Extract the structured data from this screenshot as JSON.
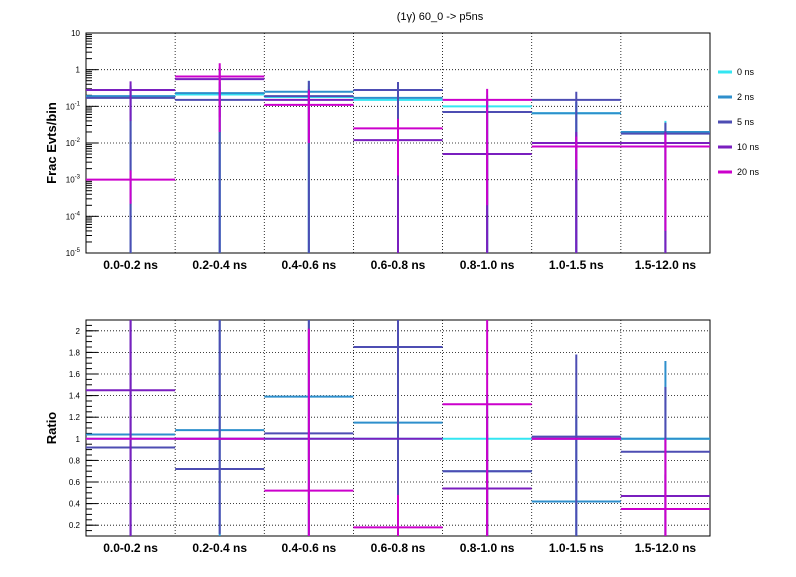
{
  "figure": {
    "title": "(1γ) 60_0 -> p5ns"
  },
  "colors": {
    "0 ns": "#33e6f2",
    "2 ns": "#2e8fcc",
    "5 ns": "#4d4db3",
    "10 ns": "#7a1fbf",
    "20 ns": "#cc00cc"
  },
  "chart_data": [
    {
      "type": "line",
      "name": "top",
      "categories": [
        "0.0-0.2 ns",
        "0.2-0.4 ns",
        "0.4-0.6 ns",
        "0.6-0.8 ns",
        "0.8-1.0 ns",
        "1.0-1.5 ns",
        "1.5-12.0 ns"
      ],
      "ylabel": "Frac Evts/bin",
      "xlabel": "",
      "yscale": "log",
      "ylim": [
        1e-05,
        10
      ],
      "ytick_labels": [
        "10^{-5}",
        "10^{-4}",
        "10^{-3}",
        "10^{-2}",
        "10^{-1}",
        "1",
        "10"
      ],
      "grid": true,
      "legend": "right",
      "series": [
        {
          "name": "0 ns",
          "values": [
            0.18,
            0.21,
            0.18,
            0.15,
            0.1,
            0.065,
            0.02
          ],
          "err_lo": [
            0.18,
            0.21,
            0.18,
            0.15,
            0.1,
            0.065,
            0.02
          ],
          "err_hi": [
            0.18,
            0.21,
            0.18,
            0.15,
            0.1,
            0.065,
            0.02
          ]
        },
        {
          "name": "2 ns",
          "values": [
            0.19,
            0.23,
            0.25,
            0.17,
            0.07,
            0.065,
            0.02
          ],
          "err_lo": [
            0.19,
            0.23,
            0.25,
            0.17,
            0.07,
            0.065,
            0.02
          ],
          "err_hi": [
            0.19,
            0.23,
            0.25,
            0.17,
            0.07,
            0.065,
            0.014
          ]
        },
        {
          "name": "5 ns",
          "values": [
            0.17,
            0.15,
            0.19,
            0.28,
            0.07,
            0.15,
            0.018
          ],
          "err_lo": [
            0.17,
            0.15,
            0.19,
            0.28,
            0.07,
            0.15,
            0.018
          ],
          "err_hi": [
            0.17,
            0.15,
            0.3,
            0.18,
            0.07,
            0.1,
            0.018
          ]
        },
        {
          "name": "10 ns",
          "values": [
            0.28,
            0.55,
            0.15,
            0.012,
            0.005,
            0.01,
            0.01
          ],
          "err_lo": [
            0.24,
            0.5,
            0.14,
            0.012,
            0.005,
            0.01,
            0.01
          ],
          "err_hi": [
            0.2,
            0.6,
            0.14,
            0.012,
            0.005,
            0.01,
            0.01
          ]
        },
        {
          "name": "20 ns",
          "values": [
            0.001,
            0.65,
            0.11,
            0.025,
            0.15,
            0.008,
            0.008
          ],
          "err_lo": [
            0.00078,
            0.63,
            0.1,
            0.0237,
            0.1498,
            0.0061,
            0.00796
          ],
          "err_hi": [
            0.0008,
            0.85,
            0.16,
            0.021,
            0.15,
            0.007,
            0.01
          ]
        }
      ]
    },
    {
      "type": "line",
      "name": "ratio",
      "categories": [
        "0.0-0.2 ns",
        "0.2-0.4 ns",
        "0.4-0.6 ns",
        "0.6-0.8 ns",
        "0.8-1.0 ns",
        "1.0-1.5 ns",
        "1.5-12.0 ns"
      ],
      "ylabel": "Ratio",
      "xlabel": "",
      "ylim": [
        0.1,
        2.1
      ],
      "yticks": [
        0.2,
        0.4,
        0.6,
        0.8,
        1,
        1.2,
        1.4,
        1.6,
        1.8,
        2
      ],
      "grid": true,
      "series": [
        {
          "name": "0 ns",
          "values": [
            1.0,
            1.0,
            1.0,
            1.0,
            1.0,
            1.0,
            1.0
          ],
          "err_lo": [
            0,
            0,
            0,
            0,
            0,
            0,
            0
          ],
          "err_hi": [
            0,
            0,
            0,
            0,
            0,
            0,
            0
          ]
        },
        {
          "name": "2 ns",
          "values": [
            1.04,
            1.08,
            1.39,
            1.15,
            0.7,
            0.42,
            1.0
          ],
          "err_lo": [
            0.95,
            0.98,
            1.3,
            1.1,
            0.65,
            0.32,
            0.9
          ],
          "err_hi": [
            1.1,
            1.05,
            1.2,
            1.05,
            0.7,
            0.8,
            0.72
          ]
        },
        {
          "name": "5 ns",
          "values": [
            0.92,
            0.72,
            1.05,
            1.85,
            0.7,
            1.02,
            0.88
          ],
          "err_lo": [
            0.85,
            0.6,
            0.95,
            1.75,
            0.6,
            0.92,
            0.78
          ],
          "err_hi": [
            1.2,
            1.4,
            1.1,
            0.3,
            0.5,
            0.76,
            0.6
          ]
        },
        {
          "name": "10 ns",
          "values": [
            1.45,
            1.0,
            1.0,
            1.0,
            0.54,
            1.0,
            0.47
          ],
          "err_lo": [
            1.35,
            0,
            0,
            0,
            0.44,
            0,
            0.37
          ],
          "err_hi": [
            0.7,
            0,
            0,
            0,
            0.5,
            0,
            0.2
          ]
        },
        {
          "name": "20 ns",
          "values": [
            1.0,
            1.0,
            0.52,
            0.18,
            1.32,
            1.0,
            0.35
          ],
          "err_lo": [
            0,
            0,
            0.42,
            0.08,
            1.22,
            0,
            0.25
          ],
          "err_hi": [
            0,
            0,
            1.5,
            0.3,
            0.8,
            0,
            0.65
          ]
        }
      ]
    }
  ]
}
